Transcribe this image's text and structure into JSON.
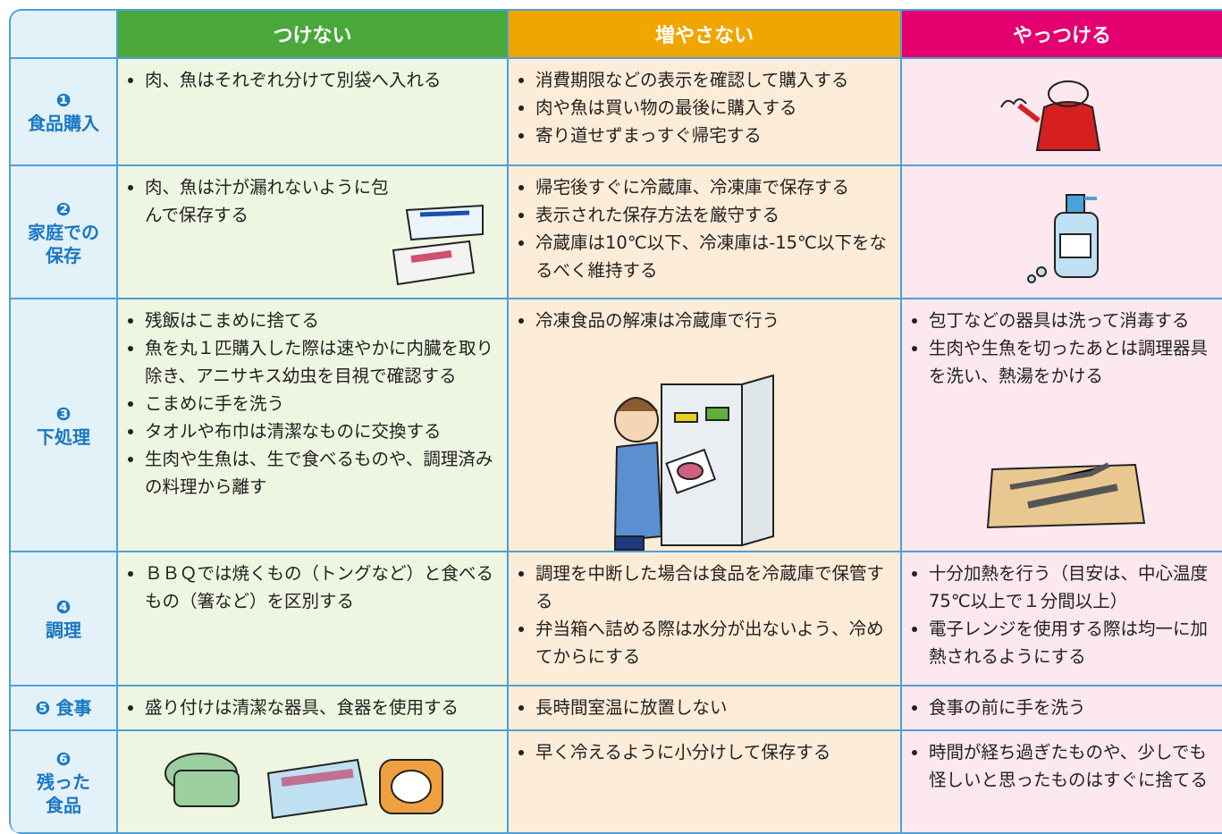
{
  "table": {
    "columns": [
      "つけない",
      "増やさない",
      "やっつける"
    ],
    "rows": [
      {
        "number": "❶",
        "label": [
          "食品購入"
        ],
        "cells": [
          [
            "肉、魚はそれぞれ分けて別袋へ入れる"
          ],
          [
            "消費期限などの表示を確認して購入する",
            "肉や魚は買い物の最後に購入する",
            "寄り道せずまっすぐ帰宅する"
          ],
          []
        ]
      },
      {
        "number": "❷",
        "label": [
          "家庭での",
          "保存"
        ],
        "cells": [
          [
            "肉、魚は汁が漏れないように包んで保存する"
          ],
          [
            "帰宅後すぐに冷蔵庫、冷凍庫で保存する",
            "表示された保存方法を厳守する",
            "冷蔵庫は10℃以下、冷凍庫は-15℃以下をなるべく維持する"
          ],
          []
        ]
      },
      {
        "number": "❸",
        "label": [
          "下処理"
        ],
        "cells": [
          [
            "残飯はこまめに捨てる",
            "魚を丸１匹購入した際は速やかに内臓を取り除き、アニサキス幼虫を目視で確認する",
            "こまめに手を洗う",
            "タオルや布巾は清潔なものに交換する",
            "生肉や生魚は、生で食べるものや、調理済みの料理から離す"
          ],
          [
            "冷凍食品の解凍は冷蔵庫で行う"
          ],
          [
            "包丁などの器具は洗って消毒する",
            "生肉や生魚を切ったあとは調理器具を洗い、熱湯をかける"
          ]
        ]
      },
      {
        "number": "❹",
        "label": [
          "調理"
        ],
        "cells": [
          [
            "ＢＢＱでは焼くもの（トングなど）と食べるもの（箸など）を区別する"
          ],
          [
            "調理を中断した場合は食品を冷蔵庫で保管する",
            "弁当箱へ詰める際は水分が出ないよう、冷めてからにする"
          ],
          [
            "十分加熱を行う（目安は、中心温度75℃以上で１分間以上）",
            "電子レンジを使用する際は均一に加熱されるようにする"
          ]
        ]
      },
      {
        "number": "❺",
        "label": [
          "食事"
        ],
        "cells": [
          [
            "盛り付けは清潔な器具、食器を使用する"
          ],
          [
            "長時間室温に放置しない"
          ],
          [
            "食事の前に手を洗う"
          ]
        ]
      },
      {
        "number": "❻",
        "label": [
          "残った",
          "食品"
        ],
        "cells": [
          [],
          [
            "早く冷えるように小分けして保存する"
          ],
          [
            "時間が経ち過ぎたものや、少しでも怪しいと思ったものはすぐに捨てる"
          ]
        ]
      }
    ]
  }
}
